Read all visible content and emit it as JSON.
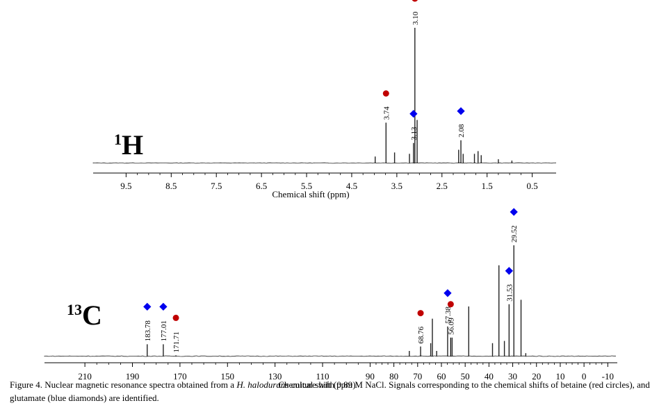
{
  "chart_data": [
    {
      "type": "line",
      "nucleus": "1H",
      "nucleus_label": {
        "mass": "1",
        "element": "H"
      },
      "xlabel": "Chemical shift (ppm)",
      "x_reversed": true,
      "xlim": [
        10.23,
        -0.03
      ],
      "ticks": [
        9.5,
        8.5,
        7.5,
        6.5,
        5.5,
        4.5,
        3.5,
        2.5,
        1.5,
        0.5
      ],
      "tick_labels": [
        "9.5",
        "8.5",
        "7.5",
        "6.5",
        "5.5",
        "4.5",
        "3.5",
        "2.5",
        "1.5",
        "0.5"
      ],
      "peaks": [
        {
          "ppm": 3.1,
          "height": 1.0,
          "label": "3.10",
          "marker": "circle"
        },
        {
          "ppm": 3.74,
          "height": 0.3,
          "label": "3.74",
          "marker": "circle"
        },
        {
          "ppm": 3.13,
          "height": 0.15,
          "label": "3.13",
          "marker": "diamond"
        },
        {
          "ppm": 2.08,
          "height": 0.17,
          "label": "2.08",
          "marker": "diamond"
        }
      ],
      "minor_peaks": [
        {
          "ppm": 3.98,
          "height": 0.05
        },
        {
          "ppm": 3.55,
          "height": 0.08
        },
        {
          "ppm": 3.22,
          "height": 0.07
        },
        {
          "ppm": 3.05,
          "height": 0.32
        },
        {
          "ppm": 2.13,
          "height": 0.1
        },
        {
          "ppm": 2.03,
          "height": 0.07
        },
        {
          "ppm": 1.78,
          "height": 0.07
        },
        {
          "ppm": 1.7,
          "height": 0.09
        },
        {
          "ppm": 1.63,
          "height": 0.06
        },
        {
          "ppm": 1.25,
          "height": 0.03
        },
        {
          "ppm": 0.95,
          "height": 0.02
        }
      ]
    },
    {
      "type": "line",
      "nucleus": "13C",
      "nucleus_label": {
        "mass": "13",
        "element": "C"
      },
      "xlabel": "Chemical shift (ppm)",
      "x_reversed": true,
      "xlim": [
        227,
        -14
      ],
      "ticks": [
        210,
        190,
        170,
        150,
        130,
        110,
        90,
        80,
        70,
        60,
        50,
        40,
        30,
        20,
        10,
        0,
        -10
      ],
      "tick_labels": [
        "210",
        "190",
        "170",
        "150",
        "130",
        "110",
        "90",
        "80",
        "70",
        "60",
        "50",
        "40",
        "30",
        "20",
        "10",
        "0",
        "-10"
      ],
      "peaks": [
        {
          "ppm": 183.78,
          "height": 0.11,
          "label": "183.78",
          "marker": "diamond"
        },
        {
          "ppm": 177.01,
          "height": 0.11,
          "label": "177.01",
          "marker": "diamond"
        },
        {
          "ppm": 171.71,
          "height": 0.01,
          "label": "171.71",
          "marker": "circle"
        },
        {
          "ppm": 68.76,
          "height": 0.09,
          "label": "68.76",
          "marker": "circle"
        },
        {
          "ppm": 57.38,
          "height": 0.27,
          "label": "57.38",
          "marker": "diamond"
        },
        {
          "ppm": 56.09,
          "height": 0.17,
          "label": "56.09",
          "marker": "circle"
        },
        {
          "ppm": 31.53,
          "height": 0.47,
          "label": "31.53",
          "marker": "diamond"
        },
        {
          "ppm": 29.52,
          "height": 1.0,
          "label": "29.52",
          "marker": "diamond"
        }
      ],
      "minor_peaks": [
        {
          "ppm": 73.5,
          "height": 0.05
        },
        {
          "ppm": 64.5,
          "height": 0.12
        },
        {
          "ppm": 63.8,
          "height": 0.34
        },
        {
          "ppm": 62.0,
          "height": 0.05
        },
        {
          "ppm": 55.5,
          "height": 0.17
        },
        {
          "ppm": 48.5,
          "height": 0.45
        },
        {
          "ppm": 38.5,
          "height": 0.12
        },
        {
          "ppm": 35.8,
          "height": 0.82
        },
        {
          "ppm": 33.5,
          "height": 0.14
        },
        {
          "ppm": 26.5,
          "height": 0.51
        },
        {
          "ppm": 24.5,
          "height": 0.03
        }
      ]
    }
  ],
  "markers": {
    "circle_color": "#c00000",
    "diamond_color": "#0000ee"
  },
  "caption": {
    "prefix": "Figure 4. Nuclear magnetic resonance spectra obtained from a ",
    "organism": "H. halodurans",
    "suffix": " culture with 0.89 M NaCl. Signals corresponding to the chemical shifts of betaine (red circles), and glutamate (blue diamonds) are identified."
  }
}
